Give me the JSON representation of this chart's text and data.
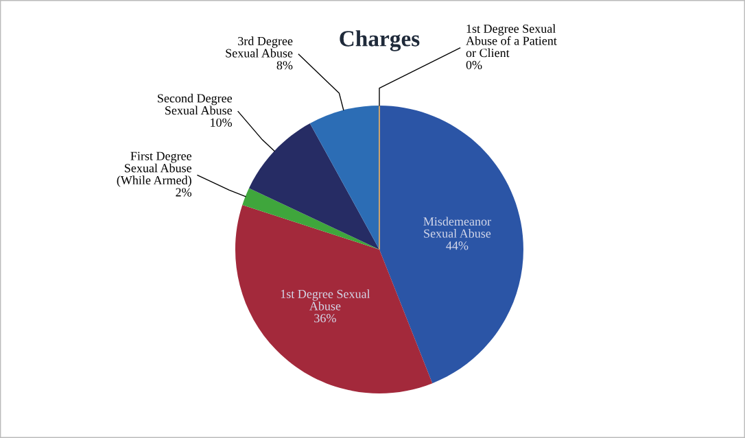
{
  "chart_data": {
    "type": "pie",
    "title": "Charges",
    "categories": [
      "Misdemeanor\nSexual Abuse",
      "1st Degree Sexual\nAbuse",
      "First Degree\nSexual Abuse\n(While Armed)",
      "Second Degree\nSexual Abuse",
      "3rd Degree\nSexual Abuse",
      "1st Degree Sexual\nAbuse of a Patient\nor Client"
    ],
    "values": [
      44,
      36,
      2,
      10,
      8,
      0
    ],
    "colors": [
      "#2b55a6",
      "#a3293b",
      "#3fa63c",
      "#262c64",
      "#2c6db5",
      "#c9a36f"
    ],
    "value_labels": [
      "44%",
      "36%",
      "2%",
      "10%",
      "8%",
      "0%"
    ],
    "legend": false
  }
}
